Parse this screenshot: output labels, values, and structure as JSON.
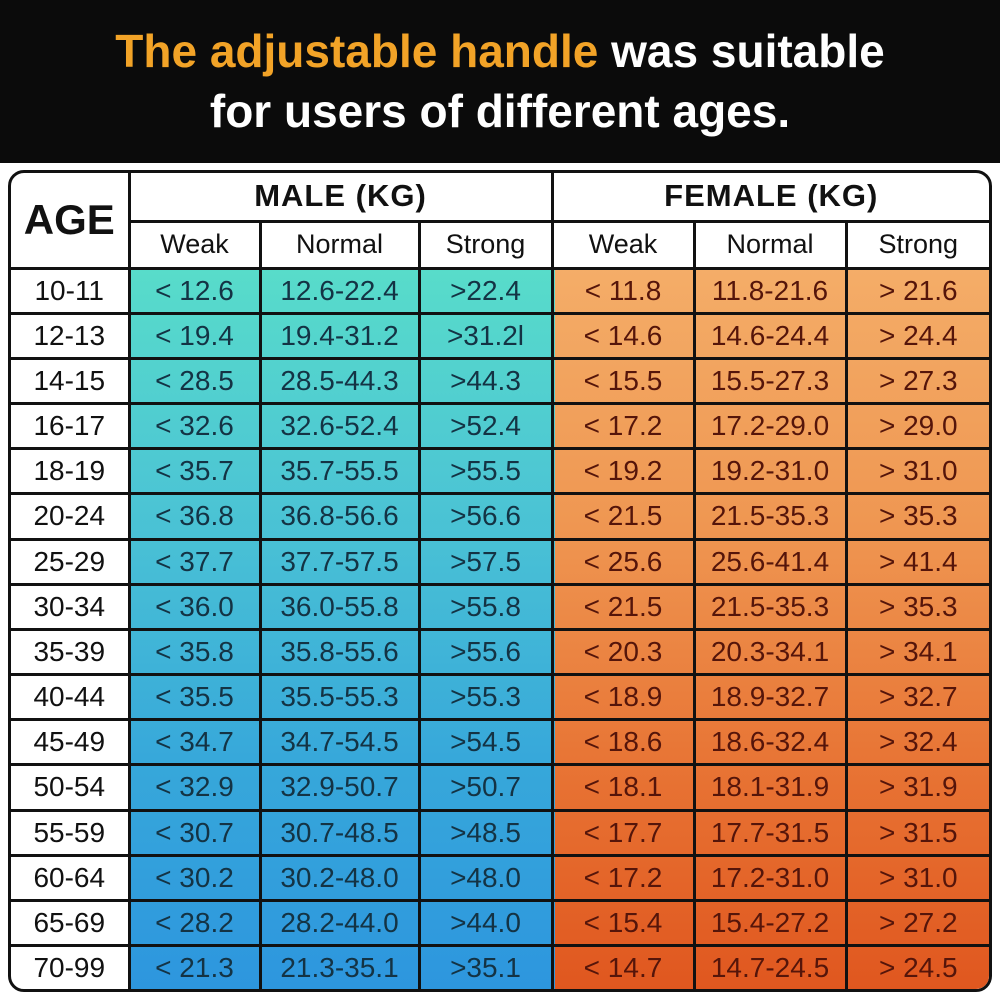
{
  "banner": {
    "accent_text": "The adjustable handle",
    "rest_text": " was suitable",
    "line2": "for users of different ages.",
    "accent_color": "#f2a327",
    "text_color": "#ffffff",
    "background_color": "#0b0b0b"
  },
  "colors": {
    "border": "#111111",
    "male_gradient_top": "#58dcca",
    "male_gradient_bottom": "#2d96de",
    "male_text": "#143344",
    "female_gradient_top": "#f4ad68",
    "female_gradient_bottom": "#e0571f",
    "female_text": "#55150a"
  },
  "chart_data": {
    "type": "table",
    "age_label": "AGE",
    "column_groups": [
      {
        "label": "MALE (KG)",
        "columns": [
          "Weak",
          "Normal",
          "Strong"
        ]
      },
      {
        "label": "FEMALE (KG)",
        "columns": [
          "Weak",
          "Normal",
          "Strong"
        ]
      }
    ],
    "rows": [
      {
        "age": "10-11",
        "male": [
          "< 12.6",
          "12.6-22.4",
          ">22.4"
        ],
        "female": [
          "< 11.8",
          "11.8-21.6",
          "> 21.6"
        ]
      },
      {
        "age": "12-13",
        "male": [
          "< 19.4",
          "19.4-31.2",
          ">31.2l"
        ],
        "female": [
          "< 14.6",
          "14.6-24.4",
          "> 24.4"
        ]
      },
      {
        "age": "14-15",
        "male": [
          "< 28.5",
          "28.5-44.3",
          ">44.3"
        ],
        "female": [
          "< 15.5",
          "15.5-27.3",
          "> 27.3"
        ]
      },
      {
        "age": "16-17",
        "male": [
          "< 32.6",
          "32.6-52.4",
          ">52.4"
        ],
        "female": [
          "< 17.2",
          "17.2-29.0",
          "> 29.0"
        ]
      },
      {
        "age": "18-19",
        "male": [
          "< 35.7",
          "35.7-55.5",
          ">55.5"
        ],
        "female": [
          "< 19.2",
          "19.2-31.0",
          "> 31.0"
        ]
      },
      {
        "age": "20-24",
        "male": [
          "< 36.8",
          "36.8-56.6",
          ">56.6"
        ],
        "female": [
          "< 21.5",
          "21.5-35.3",
          "> 35.3"
        ]
      },
      {
        "age": "25-29",
        "male": [
          "< 37.7",
          "37.7-57.5",
          ">57.5"
        ],
        "female": [
          "< 25.6",
          "25.6-41.4",
          "> 41.4"
        ]
      },
      {
        "age": "30-34",
        "male": [
          "< 36.0",
          "36.0-55.8",
          ">55.8"
        ],
        "female": [
          "< 21.5",
          "21.5-35.3",
          "> 35.3"
        ]
      },
      {
        "age": "35-39",
        "male": [
          "< 35.8",
          "35.8-55.6",
          ">55.6"
        ],
        "female": [
          "< 20.3",
          "20.3-34.1",
          "> 34.1"
        ]
      },
      {
        "age": "40-44",
        "male": [
          "< 35.5",
          "35.5-55.3",
          ">55.3"
        ],
        "female": [
          "< 18.9",
          "18.9-32.7",
          "> 32.7"
        ]
      },
      {
        "age": "45-49",
        "male": [
          "< 34.7",
          "34.7-54.5",
          ">54.5"
        ],
        "female": [
          "< 18.6",
          "18.6-32.4",
          "> 32.4"
        ]
      },
      {
        "age": "50-54",
        "male": [
          "< 32.9",
          "32.9-50.7",
          ">50.7"
        ],
        "female": [
          "< 18.1",
          "18.1-31.9",
          "> 31.9"
        ]
      },
      {
        "age": "55-59",
        "male": [
          "< 30.7",
          "30.7-48.5",
          ">48.5"
        ],
        "female": [
          "< 17.7",
          "17.7-31.5",
          "> 31.5"
        ]
      },
      {
        "age": "60-64",
        "male": [
          "< 30.2",
          "30.2-48.0",
          ">48.0"
        ],
        "female": [
          "< 17.2",
          "17.2-31.0",
          "> 31.0"
        ]
      },
      {
        "age": "65-69",
        "male": [
          "< 28.2",
          "28.2-44.0",
          ">44.0"
        ],
        "female": [
          "< 15.4",
          "15.4-27.2",
          "> 27.2"
        ]
      },
      {
        "age": "70-99",
        "male": [
          "< 21.3",
          "21.3-35.1",
          ">35.1"
        ],
        "female": [
          "< 14.7",
          "14.7-24.5",
          "> 24.5"
        ]
      }
    ]
  }
}
